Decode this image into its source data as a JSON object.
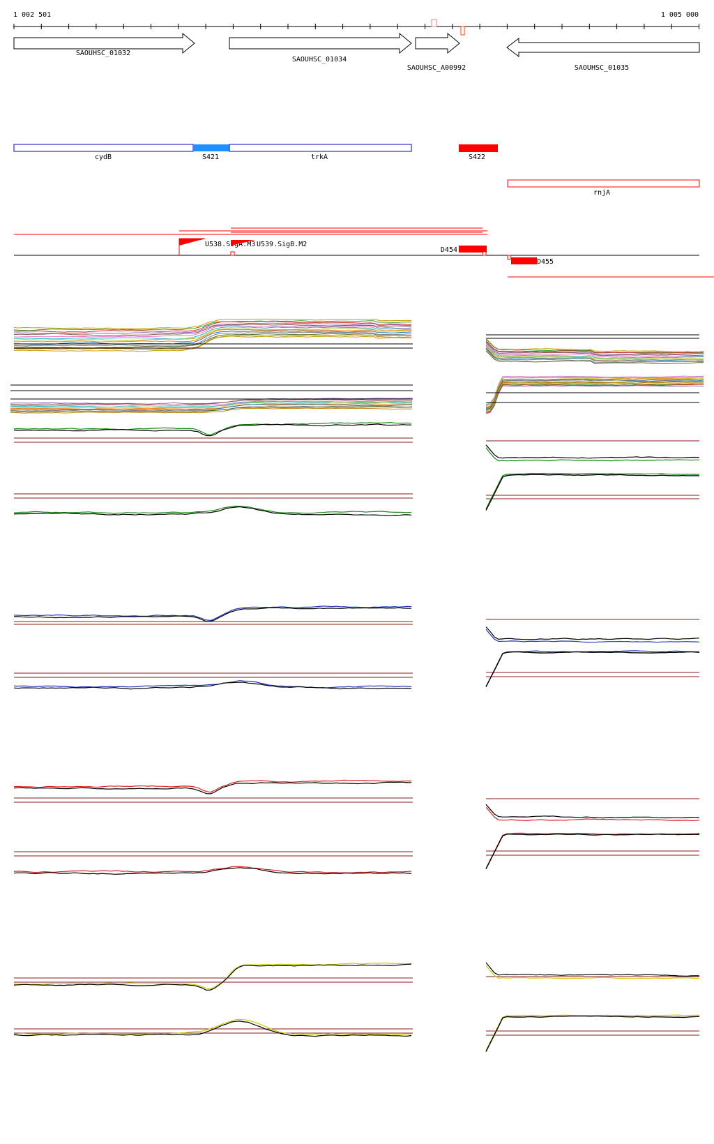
{
  "ruler": {
    "start_label": "1 002 501",
    "end_label": "1 005 000"
  },
  "genes": [
    {
      "name": "SAOUHSC_01032",
      "strand": "+"
    },
    {
      "name": "SAOUHSC_01034",
      "strand": "+"
    },
    {
      "name": "SAOUHSC_A00992",
      "strand": "+"
    },
    {
      "name": "SAOUHSC_01035",
      "strand": "-"
    }
  ],
  "annotations": [
    {
      "name": "cydB",
      "kind": "gene",
      "color": "#0000cc"
    },
    {
      "name": "S421",
      "kind": "segment",
      "color": "#1e90ff"
    },
    {
      "name": "trkA",
      "kind": "gene",
      "color": "#0000cc"
    },
    {
      "name": "S422",
      "kind": "segment",
      "color": "#ff0000"
    },
    {
      "name": "rnjA",
      "kind": "gene",
      "color": "#ff0000"
    }
  ],
  "transcription_units": [
    {
      "name": "U538.SigA.M3"
    },
    {
      "name": "U539.SigB.M2"
    }
  ],
  "downshifts": [
    {
      "name": "D454"
    },
    {
      "name": "D455"
    }
  ],
  "colors": {
    "gene_outline": "#000000",
    "feature_red": "#ff0000",
    "feature_blue": "#0000cc",
    "threshold": "#8b1a1a",
    "panel_green": "#1a8c1a",
    "panel_blue": "#2233bb",
    "panel_red": "#dd2222",
    "panel_yellow": "#cccc00"
  },
  "expression_panels": [
    {
      "id": "multi",
      "color": "multicolor"
    },
    {
      "id": "green",
      "color": "#1a8c1a"
    },
    {
      "id": "blue",
      "color": "#2233bb"
    },
    {
      "id": "red",
      "color": "#dd2222"
    },
    {
      "id": "yellow",
      "color": "#cccc00"
    }
  ]
}
